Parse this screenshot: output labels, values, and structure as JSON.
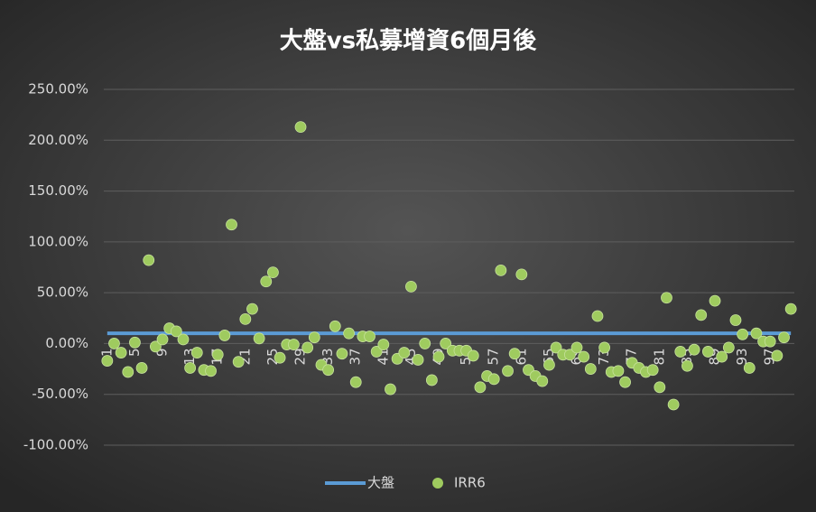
{
  "chart_data": {
    "type": "combo",
    "title": "大盤vs私募增資6個月後",
    "categories": [
      "1",
      null,
      null,
      null,
      "5",
      null,
      null,
      null,
      "9",
      null,
      null,
      null,
      "13",
      null,
      null,
      null,
      "17",
      null,
      null,
      null,
      "21",
      null,
      null,
      null,
      "25",
      null,
      null,
      null,
      "29",
      null,
      null,
      null,
      "33",
      null,
      null,
      null,
      "37",
      null,
      null,
      null,
      "41",
      null,
      null,
      null,
      "45",
      null,
      null,
      null,
      "49",
      null,
      null,
      null,
      "53",
      null,
      null,
      null,
      "57",
      null,
      null,
      null,
      "61",
      null,
      null,
      null,
      "65",
      null,
      null,
      null,
      "69",
      null,
      null,
      null,
      "73",
      null,
      null,
      null,
      "77",
      null,
      null,
      null,
      "81",
      null,
      null,
      null,
      "85",
      null,
      null,
      null,
      "89",
      null,
      null,
      null,
      "93",
      null,
      null,
      null,
      "97",
      null,
      null,
      null
    ],
    "series": [
      {
        "name": "大盤",
        "type": "line",
        "color": "#5b9bd5",
        "values": [
          10,
          10,
          10,
          10,
          10,
          10,
          10,
          10,
          10,
          10,
          10,
          10,
          10,
          10,
          10,
          10,
          10,
          10,
          10,
          10,
          10,
          10,
          10,
          10,
          10,
          10,
          10,
          10,
          10,
          10,
          10,
          10,
          10,
          10,
          10,
          10,
          10,
          10,
          10,
          10,
          10,
          10,
          10,
          10,
          10,
          10,
          10,
          10,
          10,
          10,
          10,
          10,
          10,
          10,
          10,
          10,
          10,
          10,
          10,
          10,
          10,
          10,
          10,
          10,
          10,
          10,
          10,
          10,
          10,
          10,
          10,
          10,
          10,
          10,
          10,
          10,
          10,
          10,
          10,
          10,
          10,
          10,
          10,
          10,
          10,
          10,
          10,
          10,
          10,
          10,
          10,
          10,
          10,
          10,
          10,
          10,
          10,
          10,
          10,
          10
        ]
      },
      {
        "name": "IRR6",
        "type": "scatter",
        "color": "#9fcb5f",
        "values": [
          -17,
          0,
          -9,
          -28,
          1,
          -24,
          82,
          -3,
          4,
          15,
          12,
          4,
          -24,
          -9,
          -26,
          -27,
          -11,
          8,
          117,
          -18,
          24,
          34,
          5,
          61,
          70,
          -14,
          -1,
          -1,
          213,
          -4,
          6,
          -21,
          -26,
          17,
          -10,
          10,
          -38,
          7,
          7,
          -8,
          -1,
          -45,
          -15,
          -9,
          56,
          -16,
          0,
          -36,
          -13,
          0,
          -7,
          -7,
          -7,
          -12,
          -43,
          -32,
          -35,
          72,
          -27,
          -10,
          68,
          -26,
          -32,
          -37,
          -21,
          -4,
          -11,
          -11,
          -4,
          -13,
          -25,
          27,
          -4,
          -28,
          -27,
          -38,
          -19,
          -24,
          -28,
          -26,
          -43,
          45,
          -60,
          -8,
          -22,
          -6,
          28,
          -8,
          42,
          -13,
          -4,
          23,
          9,
          -24,
          10,
          2,
          2,
          -12,
          6,
          34
        ]
      }
    ],
    "ylim": [
      -100,
      250
    ],
    "yticks": [
      {
        "value": -100,
        "label": "-100.00%"
      },
      {
        "value": -50,
        "label": "-50.00%"
      },
      {
        "value": 0,
        "label": "0.00%"
      },
      {
        "value": 50,
        "label": "50.00%"
      },
      {
        "value": 100,
        "label": "100.00%"
      },
      {
        "value": 150,
        "label": "150.00%"
      },
      {
        "value": 200,
        "label": "200.00%"
      },
      {
        "value": 250,
        "label": "250.00%"
      }
    ],
    "grid": true,
    "legend": "bottom"
  }
}
